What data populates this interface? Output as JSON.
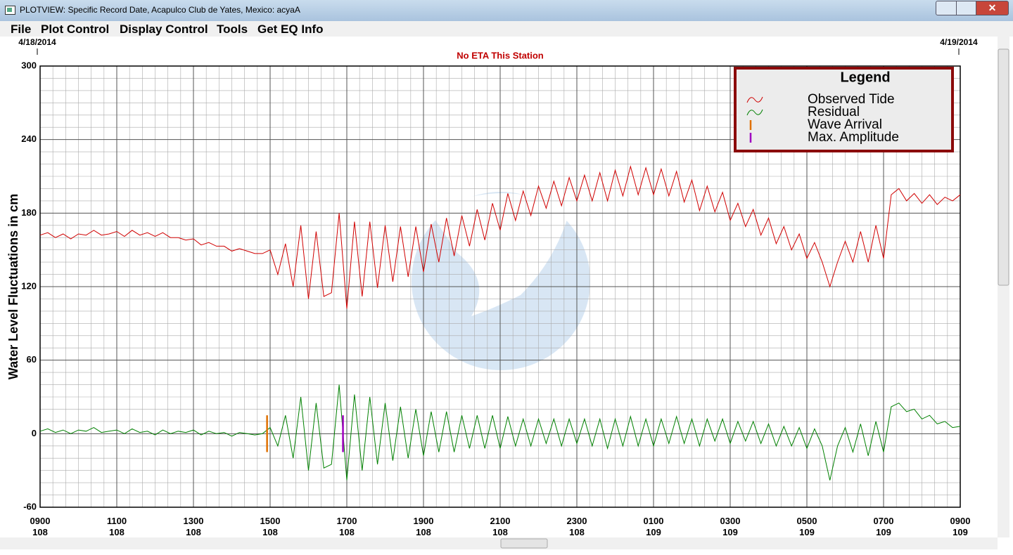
{
  "window": {
    "title": "PLOTVIEW: Specific Record Date, Acapulco Club de Yates, Mexico: acyaA"
  },
  "menu": [
    "File",
    "Plot Control",
    "Display Control",
    "Tools",
    "Get EQ Info"
  ],
  "chart_data": {
    "type": "line",
    "subtitle": "No ETA This Station",
    "date_labels": [
      "4/18/2014",
      "4/19/2014"
    ],
    "y_label": "Water Level Fluctuations in cm",
    "legend_title": "Legend",
    "grid": true,
    "xlim": [
      0,
      24
    ],
    "ylim": [
      -60,
      300
    ],
    "yticks": [
      -60,
      0,
      60,
      120,
      180,
      240,
      300
    ],
    "xticks": [
      {
        "value": 0,
        "label": "0900\n108"
      },
      {
        "value": 2,
        "label": "1100\n108"
      },
      {
        "value": 4,
        "label": "1300\n108"
      },
      {
        "value": 6,
        "label": "1500\n108"
      },
      {
        "value": 8,
        "label": "1700\n108"
      },
      {
        "value": 10,
        "label": "1900\n108"
      },
      {
        "value": 12,
        "label": "2100\n108"
      },
      {
        "value": 14,
        "label": "2300\n108"
      },
      {
        "value": 16,
        "label": "0100\n109"
      },
      {
        "value": 18,
        "label": "0300\n109"
      },
      {
        "value": 20,
        "label": "0500\n109"
      },
      {
        "value": 22,
        "label": "0700\n109"
      },
      {
        "value": 24,
        "label": "0900\n109"
      }
    ],
    "x": [
      0,
      0.2,
      0.4,
      0.6,
      0.8,
      1,
      1.2,
      1.4,
      1.6,
      1.8,
      2,
      2.2,
      2.4,
      2.6,
      2.8,
      3,
      3.2,
      3.4,
      3.6,
      3.8,
      4,
      4.2,
      4.4,
      4.6,
      4.8,
      5,
      5.2,
      5.4,
      5.6,
      5.8,
      6,
      6.2,
      6.4,
      6.6,
      6.8,
      7,
      7.2,
      7.4,
      7.6,
      7.8,
      8,
      8.2,
      8.4,
      8.6,
      8.8,
      9,
      9.2,
      9.4,
      9.6,
      9.8,
      10,
      10.2,
      10.4,
      10.6,
      10.8,
      11,
      11.2,
      11.4,
      11.6,
      11.8,
      12,
      12.2,
      12.4,
      12.6,
      12.8,
      13,
      13.2,
      13.4,
      13.6,
      13.8,
      14,
      14.2,
      14.4,
      14.6,
      14.8,
      15,
      15.2,
      15.4,
      15.6,
      15.8,
      16,
      16.2,
      16.4,
      16.6,
      16.8,
      17,
      17.2,
      17.4,
      17.6,
      17.8,
      18,
      18.2,
      18.4,
      18.6,
      18.8,
      19,
      19.2,
      19.4,
      19.6,
      19.8,
      20,
      20.2,
      20.4,
      20.6,
      20.8,
      21,
      21.2,
      21.4,
      21.6,
      21.8,
      22,
      22.2,
      22.4,
      22.6,
      22.8,
      23,
      23.2,
      23.4,
      23.6,
      23.8,
      24
    ],
    "series": [
      {
        "name": "Observed Tide",
        "color": "#d00000",
        "values": [
          162,
          164,
          160,
          163,
          159,
          163,
          162,
          166,
          162,
          163,
          165,
          161,
          166,
          162,
          164,
          161,
          164,
          160,
          160,
          158,
          159,
          154,
          156,
          153,
          153,
          149,
          151,
          149,
          147,
          147,
          150,
          130,
          155,
          120,
          170,
          110,
          165,
          112,
          115,
          180,
          102,
          173,
          112,
          173,
          119,
          170,
          124,
          169,
          128,
          169,
          132,
          171,
          140,
          176,
          145,
          178,
          153,
          183,
          158,
          188,
          166,
          196,
          174,
          198,
          178,
          202,
          184,
          206,
          186,
          209,
          190,
          211,
          190,
          213,
          190,
          215,
          194,
          218,
          195,
          217,
          195,
          216,
          194,
          214,
          189,
          207,
          182,
          202,
          181,
          197,
          174,
          188,
          169,
          183,
          162,
          176,
          155,
          169,
          150,
          163,
          143,
          156,
          140,
          120,
          140,
          157,
          140,
          165,
          140,
          170,
          143,
          195,
          200,
          190,
          196,
          188,
          195,
          187,
          193,
          190,
          195
        ]
      },
      {
        "name": "Residual",
        "color": "#008000",
        "values": [
          2,
          4,
          1,
          3,
          0,
          3,
          2,
          5,
          1,
          2,
          3,
          0,
          4,
          1,
          2,
          -1,
          3,
          0,
          2,
          1,
          3,
          -1,
          2,
          0,
          1,
          -2,
          1,
          0,
          -1,
          0,
          5,
          -10,
          15,
          -20,
          30,
          -30,
          25,
          -28,
          -25,
          40,
          -38,
          32,
          -30,
          30,
          -25,
          25,
          -22,
          22,
          -20,
          20,
          -18,
          18,
          -15,
          18,
          -15,
          15,
          -12,
          15,
          -12,
          15,
          -12,
          14,
          -10,
          12,
          -10,
          12,
          -8,
          12,
          -10,
          12,
          -8,
          12,
          -10,
          12,
          -12,
          12,
          -10,
          14,
          -10,
          12,
          -10,
          12,
          -8,
          14,
          -8,
          12,
          -10,
          12,
          -6,
          12,
          -8,
          10,
          -6,
          10,
          -8,
          8,
          -10,
          6,
          -10,
          5,
          -12,
          4,
          -10,
          -38,
          -10,
          5,
          -15,
          8,
          -18,
          10,
          -15,
          22,
          25,
          18,
          20,
          12,
          15,
          8,
          10,
          5,
          6
        ]
      }
    ],
    "markers": [
      {
        "name": "Wave Arrival",
        "color": "#e07000",
        "x": 5.92,
        "range": [
          -15,
          15
        ]
      },
      {
        "name": "Max. Amplitude",
        "color": "#a000c0",
        "x": 7.9,
        "range": [
          -15,
          15
        ]
      }
    ]
  }
}
